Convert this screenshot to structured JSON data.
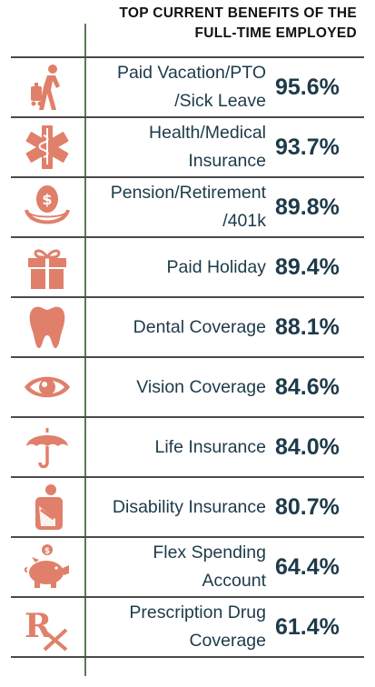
{
  "title_lines": [
    "TOP CURRENT BENEFITS OF THE",
    "FULL-TIME EMPLOYED"
  ],
  "icon_color": "#e0806a",
  "chart_data": {
    "type": "table",
    "title": "TOP CURRENT BENEFITS OF THE FULL-TIME EMPLOYED",
    "columns": [
      "icon",
      "benefit",
      "percent"
    ],
    "rows": [
      {
        "icon": "traveler-icon",
        "label": "Paid Vacation/PTO\n/Sick Leave",
        "value": 95.6,
        "display": "95.6%"
      },
      {
        "icon": "medical-star-icon",
        "label": "Health/Medical\nInsurance",
        "value": 93.7,
        "display": "93.7%"
      },
      {
        "icon": "money-nest-egg-icon",
        "label": "Pension/Retirement\n/401k",
        "value": 89.8,
        "display": "89.8%"
      },
      {
        "icon": "gift-icon",
        "label": "Paid Holiday",
        "value": 89.4,
        "display": "89.4%"
      },
      {
        "icon": "tooth-icon",
        "label": "Dental Coverage",
        "value": 88.1,
        "display": "88.1%"
      },
      {
        "icon": "eye-icon",
        "label": "Vision Coverage",
        "value": 84.6,
        "display": "84.6%"
      },
      {
        "icon": "umbrella-icon",
        "label": "Life Insurance",
        "value": 84.0,
        "display": "84.0%"
      },
      {
        "icon": "injured-person-icon",
        "label": "Disability Insurance",
        "value": 80.7,
        "display": "80.7%"
      },
      {
        "icon": "piggy-bank-icon",
        "label": "Flex Spending\nAccount",
        "value": 64.4,
        "display": "64.4%"
      },
      {
        "icon": "prescription-rx-icon",
        "label": "Prescription Drug\nCoverage",
        "value": 61.4,
        "display": "61.4%"
      }
    ]
  }
}
